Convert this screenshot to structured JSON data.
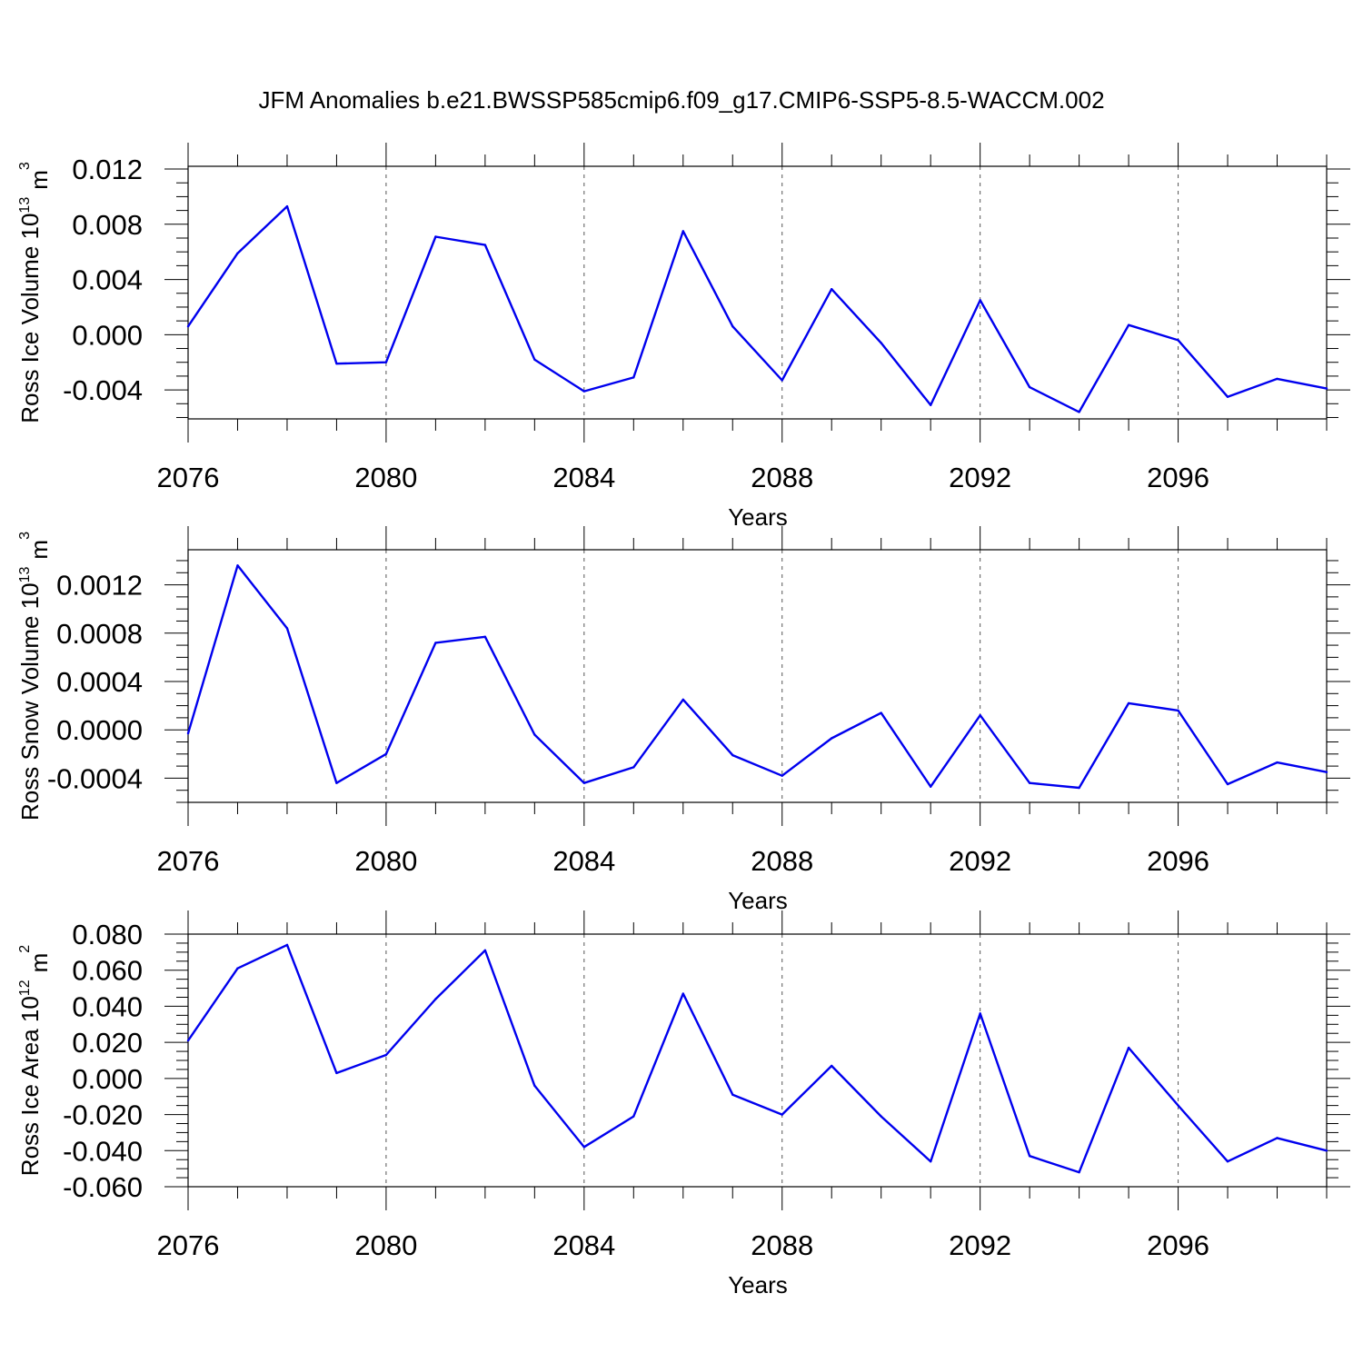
{
  "figure": {
    "title": "JFM Anomalies b.e21.BWSSP585cmip6.f09_g17.CMIP6-SSP5-8.5-WACCM.002",
    "line_color": "#0000ee"
  },
  "chart_data": [
    {
      "type": "line",
      "ylabel_main": "Ross Ice Volume 10",
      "ylabel_exp": "13",
      "ylabel_unit": "m",
      "ylabel_unit_exp": "3",
      "xlabel": "Years",
      "xlim": [
        2076,
        2099
      ],
      "ylim": [
        -0.0061,
        0.0122
      ],
      "yticks": [
        -0.004,
        0.0,
        0.004,
        0.008,
        0.012
      ],
      "ytick_labels": [
        "-0.004",
        "0.000",
        "0.004",
        "0.008",
        "0.012"
      ],
      "yminor_step": 0.001,
      "xticks": [
        2076,
        2080,
        2084,
        2088,
        2092,
        2096
      ],
      "xtick_labels": [
        "2076",
        "2080",
        "2084",
        "2088",
        "2092",
        "2096"
      ],
      "grid_x": [
        2080,
        2084,
        2088,
        2092,
        2096
      ],
      "x": [
        2076,
        2077,
        2078,
        2079,
        2080,
        2081,
        2082,
        2083,
        2084,
        2085,
        2086,
        2087,
        2088,
        2089,
        2090,
        2091,
        2092,
        2093,
        2094,
        2095,
        2096,
        2097,
        2098,
        2099
      ],
      "y": [
        0.0006,
        0.0059,
        0.0093,
        -0.0021,
        -0.002,
        0.0071,
        0.0065,
        -0.0018,
        -0.0041,
        -0.0031,
        0.0075,
        0.0006,
        -0.0033,
        0.0033,
        -0.0006,
        -0.0051,
        0.0025,
        -0.0038,
        -0.0056,
        0.0007,
        -0.0004,
        -0.0045,
        -0.0032,
        -0.0039
      ]
    },
    {
      "type": "line",
      "ylabel_main": "Ross Snow Volume 10",
      "ylabel_exp": "13",
      "ylabel_unit": "m",
      "ylabel_unit_exp": "3",
      "xlabel": "Years",
      "xlim": [
        2076,
        2099
      ],
      "ylim": [
        -0.0006,
        0.00149
      ],
      "yticks": [
        -0.0004,
        0.0,
        0.0004,
        0.0008,
        0.0012
      ],
      "ytick_labels": [
        "-0.0004",
        "0.0000",
        "0.0004",
        "0.0008",
        "0.0012"
      ],
      "yminor_step": 0.0001,
      "xticks": [
        2076,
        2080,
        2084,
        2088,
        2092,
        2096
      ],
      "xtick_labels": [
        "2076",
        "2080",
        "2084",
        "2088",
        "2092",
        "2096"
      ],
      "grid_x": [
        2080,
        2084,
        2088,
        2092,
        2096
      ],
      "x": [
        2076,
        2077,
        2078,
        2079,
        2080,
        2081,
        2082,
        2083,
        2084,
        2085,
        2086,
        2087,
        2088,
        2089,
        2090,
        2091,
        2092,
        2093,
        2094,
        2095,
        2096,
        2097,
        2098,
        2099
      ],
      "y": [
        -3e-05,
        0.00136,
        0.00084,
        -0.00044,
        -0.0002,
        0.00072,
        0.00077,
        -4e-05,
        -0.00044,
        -0.00031,
        0.00025,
        -0.00021,
        -0.00038,
        -7e-05,
        0.00014,
        -0.00047,
        0.00012,
        -0.00044,
        -0.00048,
        0.00022,
        0.00016,
        -0.00045,
        -0.00027,
        -0.00035
      ]
    },
    {
      "type": "line",
      "ylabel_main": "Ross Ice Area 10",
      "ylabel_exp": "12",
      "ylabel_unit": "m",
      "ylabel_unit_exp": "2",
      "xlabel": "Years",
      "xlim": [
        2076,
        2099
      ],
      "ylim": [
        -0.06,
        0.08
      ],
      "yticks": [
        -0.06,
        -0.04,
        -0.02,
        0.0,
        0.02,
        0.04,
        0.06,
        0.08
      ],
      "ytick_labels": [
        "-0.060",
        "-0.040",
        "-0.020",
        "0.000",
        "0.020",
        "0.040",
        "0.060",
        "0.080"
      ],
      "yminor_step": 0.005,
      "xticks": [
        2076,
        2080,
        2084,
        2088,
        2092,
        2096
      ],
      "xtick_labels": [
        "2076",
        "2080",
        "2084",
        "2088",
        "2092",
        "2096"
      ],
      "grid_x": [
        2080,
        2084,
        2088,
        2092,
        2096
      ],
      "x": [
        2076,
        2077,
        2078,
        2079,
        2080,
        2081,
        2082,
        2083,
        2084,
        2085,
        2086,
        2087,
        2088,
        2089,
        2090,
        2091,
        2092,
        2093,
        2094,
        2095,
        2096,
        2097,
        2098,
        2099
      ],
      "y": [
        0.021,
        0.061,
        0.074,
        0.003,
        0.013,
        0.044,
        0.071,
        -0.004,
        -0.038,
        -0.021,
        0.047,
        -0.009,
        -0.02,
        0.007,
        -0.021,
        -0.046,
        0.036,
        -0.043,
        -0.052,
        0.017,
        -0.015,
        -0.046,
        -0.033,
        -0.04
      ]
    }
  ]
}
